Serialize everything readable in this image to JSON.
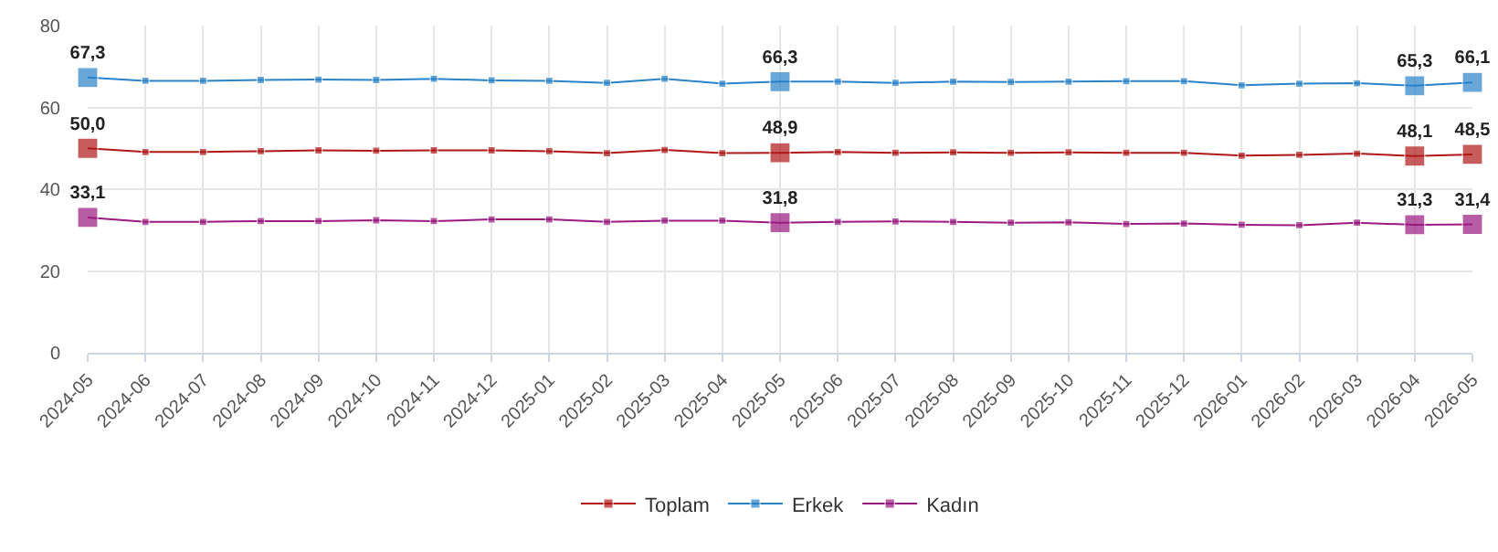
{
  "chart_data": {
    "type": "line",
    "categories": [
      "2024-05",
      "2024-06",
      "2024-07",
      "2024-08",
      "2024-09",
      "2024-10",
      "2024-11",
      "2024-12",
      "2025-01",
      "2025-02",
      "2025-03",
      "2025-04",
      "2025-05",
      "2025-06",
      "2025-07",
      "2025-08",
      "2025-09",
      "2025-10",
      "2025-11",
      "2025-12",
      "2026-01",
      "2026-02",
      "2026-03",
      "2026-04",
      "2026-05"
    ],
    "series": [
      {
        "name": "Toplam",
        "color": "#b01818",
        "values": [
          50.0,
          49.1,
          49.1,
          49.3,
          49.5,
          49.4,
          49.5,
          49.5,
          49.3,
          48.8,
          49.6,
          48.8,
          48.9,
          49.1,
          48.9,
          49.0,
          48.9,
          49.0,
          48.9,
          48.9,
          48.2,
          48.4,
          48.7,
          48.1,
          48.5
        ],
        "value_labels": [
          "50,0",
          null,
          null,
          null,
          null,
          null,
          null,
          null,
          null,
          null,
          null,
          null,
          "48,9",
          null,
          null,
          null,
          null,
          null,
          null,
          null,
          null,
          null,
          null,
          "48,1",
          "48,5"
        ]
      },
      {
        "name": "Erkek",
        "color": "#2a82c8",
        "values": [
          67.3,
          66.5,
          66.5,
          66.7,
          66.8,
          66.7,
          67.0,
          66.6,
          66.5,
          66.0,
          67.0,
          65.8,
          66.3,
          66.3,
          66.0,
          66.3,
          66.2,
          66.3,
          66.4,
          66.4,
          65.4,
          65.8,
          65.9,
          65.3,
          66.1
        ],
        "value_labels": [
          "67,3",
          null,
          null,
          null,
          null,
          null,
          null,
          null,
          null,
          null,
          null,
          null,
          "66,3",
          null,
          null,
          null,
          null,
          null,
          null,
          null,
          null,
          null,
          null,
          "65,3",
          "66,1"
        ]
      },
      {
        "name": "Kadın",
        "color": "#9a1a80",
        "values": [
          33.1,
          32.0,
          32.0,
          32.2,
          32.2,
          32.4,
          32.2,
          32.6,
          32.6,
          32.0,
          32.3,
          32.3,
          31.8,
          32.0,
          32.1,
          32.0,
          31.8,
          31.9,
          31.5,
          31.6,
          31.3,
          31.2,
          31.8,
          31.3,
          31.4
        ],
        "value_labels": [
          "33,1",
          null,
          null,
          null,
          null,
          null,
          null,
          null,
          null,
          null,
          null,
          null,
          "31,8",
          null,
          null,
          null,
          null,
          null,
          null,
          null,
          null,
          null,
          null,
          "31,3",
          "31,4"
        ]
      }
    ],
    "ylim": [
      0,
      80
    ],
    "yticks": [
      0,
      20,
      40,
      60,
      80
    ],
    "grid": true,
    "legend": "bottom",
    "marker": "square",
    "line_style": "solid"
  }
}
